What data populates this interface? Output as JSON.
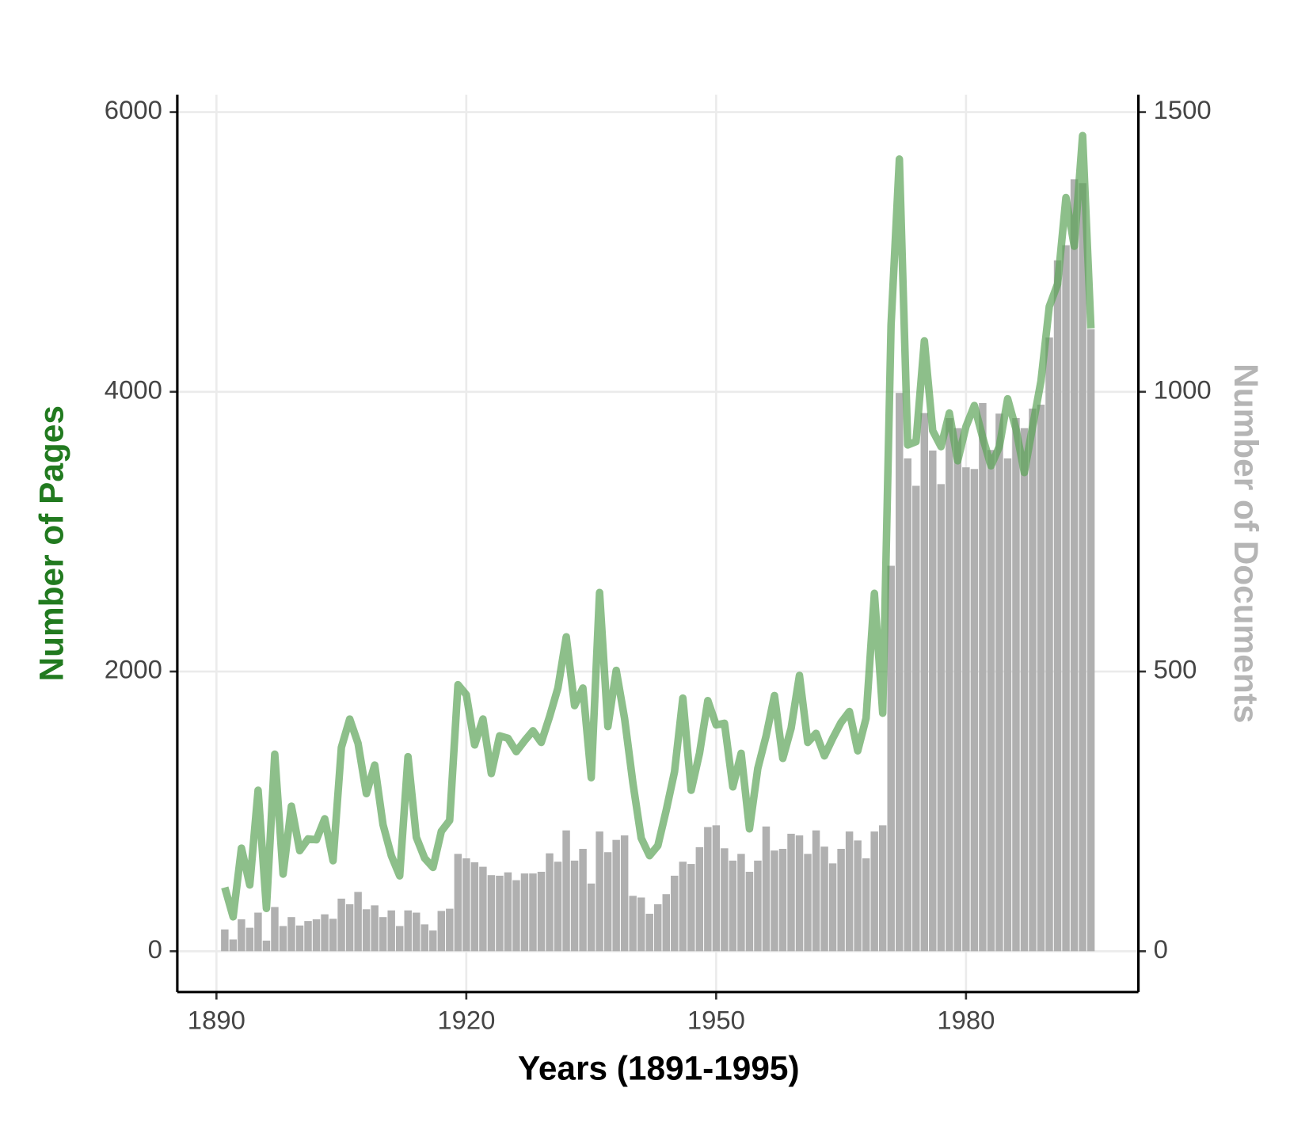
{
  "chart_data": {
    "type": "combo",
    "x_label": "Years (1891-1995)",
    "y_label": "Number of Pages",
    "y2_label": "Number of Documents",
    "y_label_color": "#217a1f",
    "y2_label_color": "#b5b5b5",
    "x": [
      1891,
      1892,
      1893,
      1894,
      1895,
      1896,
      1897,
      1898,
      1899,
      1900,
      1901,
      1902,
      1903,
      1904,
      1905,
      1906,
      1907,
      1908,
      1909,
      1910,
      1911,
      1912,
      1913,
      1914,
      1915,
      1916,
      1917,
      1918,
      1919,
      1920,
      1921,
      1922,
      1923,
      1924,
      1925,
      1926,
      1927,
      1928,
      1929,
      1930,
      1931,
      1932,
      1933,
      1934,
      1935,
      1936,
      1937,
      1938,
      1939,
      1940,
      1941,
      1942,
      1943,
      1944,
      1945,
      1946,
      1947,
      1948,
      1949,
      1950,
      1951,
      1952,
      1953,
      1954,
      1955,
      1956,
      1957,
      1958,
      1959,
      1960,
      1961,
      1962,
      1963,
      1964,
      1965,
      1966,
      1967,
      1968,
      1969,
      1970,
      1971,
      1972,
      1973,
      1974,
      1975,
      1976,
      1977,
      1978,
      1979,
      1980,
      1981,
      1982,
      1983,
      1984,
      1985,
      1986,
      1987,
      1988,
      1989,
      1990,
      1991,
      1992,
      1993,
      1994,
      1995
    ],
    "series": [
      {
        "type": "bar",
        "axis": "y2",
        "color": "#b0b0b0",
        "values": [
          39,
          21,
          57,
          42,
          69,
          19,
          79,
          45,
          61,
          46,
          54,
          57,
          66,
          58,
          94,
          84,
          106,
          75,
          82,
          61,
          73,
          45,
          73,
          69,
          48,
          37,
          72,
          76,
          174,
          166,
          159,
          151,
          136,
          135,
          141,
          127,
          139,
          139,
          142,
          175,
          160,
          216,
          162,
          183,
          121,
          214,
          177,
          199,
          207,
          99,
          96,
          67,
          84,
          102,
          135,
          160,
          156,
          186,
          222,
          225,
          184,
          162,
          174,
          142,
          162,
          223,
          180,
          183,
          210,
          207,
          174,
          216,
          187,
          157,
          183,
          214,
          198,
          166,
          214,
          225,
          689,
          998,
          881,
          832,
          962,
          895,
          835,
          953,
          935,
          865,
          862,
          980,
          896,
          961,
          881,
          953,
          935,
          970,
          977,
          1097,
          1235,
          1262,
          1380,
          1373,
          1112
        ]
      },
      {
        "type": "line",
        "axis": "y",
        "color": "#5ca459",
        "values": [
          456,
          246,
          737,
          474,
          1151,
          306,
          1409,
          551,
          1037,
          719,
          803,
          797,
          947,
          647,
          1457,
          1660,
          1487,
          1127,
          1331,
          905,
          683,
          539,
          1391,
          815,
          665,
          599,
          857,
          935,
          1906,
          1834,
          1475,
          1660,
          1271,
          1540,
          1523,
          1427,
          1505,
          1576,
          1493,
          1678,
          1882,
          2248,
          1756,
          1882,
          1241,
          2565,
          1606,
          2008,
          1666,
          1205,
          809,
          683,
          755,
          1007,
          1283,
          1810,
          1151,
          1415,
          1792,
          1618,
          1630,
          1175,
          1415,
          875,
          1307,
          1540,
          1828,
          1379,
          1594,
          1972,
          1493,
          1558,
          1397,
          1523,
          1636,
          1714,
          1433,
          1666,
          2559,
          1702,
          4478,
          5664,
          3620,
          3644,
          4364,
          3722,
          3608,
          3848,
          3507,
          3752,
          3902,
          3674,
          3471,
          3608,
          3950,
          3734,
          3423,
          3752,
          4076,
          4610,
          4771,
          5389,
          5041,
          5832,
          4454
        ]
      }
    ],
    "xlim": [
      1885.3,
      2000.7
    ],
    "ylim": [
      -292,
      6124
    ],
    "y2lim": [
      -73,
      1531
    ],
    "xticks": [
      1890,
      1920,
      1950,
      1980
    ],
    "yticks": [
      0,
      2000,
      4000,
      6000
    ],
    "y2ticks": [
      0,
      500,
      1000,
      1500
    ],
    "grid": true
  }
}
